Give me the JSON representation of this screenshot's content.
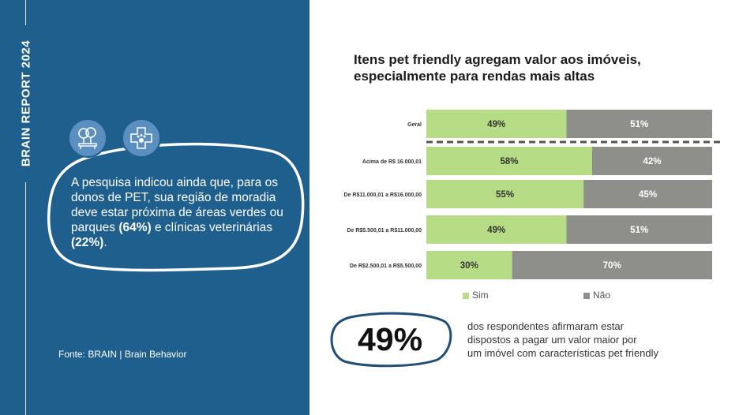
{
  "report_label": "BRAIN REPORT 2024",
  "callout": {
    "text_parts": [
      "A pesquisa indicou ainda que, para os donos de PET, sua região de moradia deve estar próxima de áreas verdes ou parques ",
      "(64%)",
      " e clínicas veterinárias ",
      "(22%)",
      "."
    ],
    "icons": [
      "park-icon",
      "vet-clinic-icon"
    ]
  },
  "source": "Fonte: BRAIN | Brain Behavior",
  "chart_title_lines": [
    "Itens pet friendly agregam valor aos imóveis,",
    "especialmente para rendas mais altas"
  ],
  "chart_data": {
    "type": "bar",
    "orientation": "horizontal",
    "stacked": true,
    "categories": [
      "Geral",
      "Acima de R$ 16.000,01",
      "De R$11.000,01 a R$16.000,00",
      "De R$5.500,01 a R$11.000,00",
      "De R$2.500,01 a R$5.500,00"
    ],
    "series": [
      {
        "name": "Sim",
        "values": [
          49,
          58,
          55,
          49,
          30
        ],
        "labels": [
          "49%",
          "58%",
          "55%",
          "49%",
          "30%"
        ],
        "color": "#b6dd85"
      },
      {
        "name": "Não",
        "values": [
          51,
          42,
          45,
          51,
          70
        ],
        "labels": [
          "51%",
          "42%",
          "45%",
          "51%",
          "70%"
        ],
        "color": "#8e8f8a"
      }
    ],
    "xlim": [
      0,
      100
    ],
    "legend": "bottom",
    "separator_after": "Geral"
  },
  "highlight": {
    "value": "49%",
    "text_lines": [
      "dos respondentes afirmaram estar",
      "dispostos a pagar um valor maior por",
      "um imóvel com características pet friendly"
    ]
  },
  "colors": {
    "panel": "#1f5f8e",
    "accent_blob": "#ffffff",
    "icon_bg": "#5b8fc0",
    "badge_border": "#1f4e79"
  }
}
